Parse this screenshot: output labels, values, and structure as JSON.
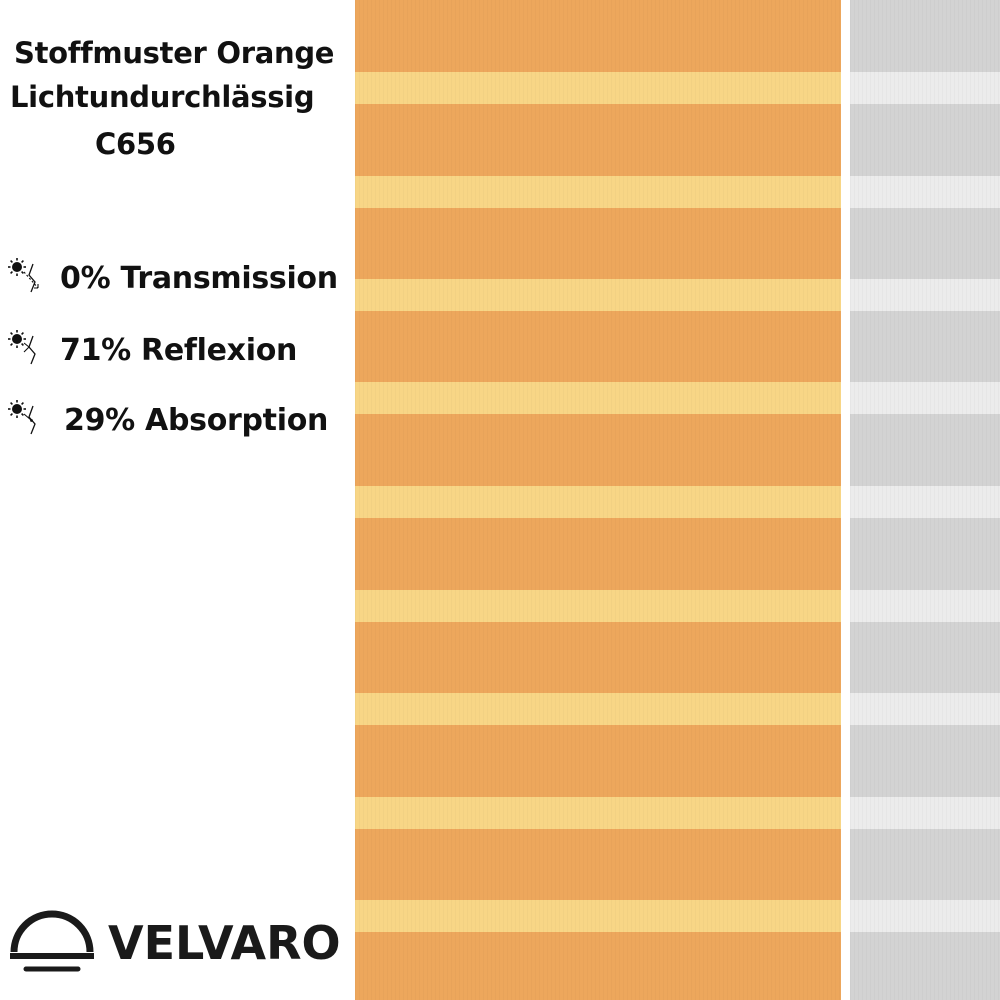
{
  "product": {
    "title_line1": "Stoffmuster Orange",
    "title_line2": "Lichtundurchlässig",
    "code": "C656"
  },
  "properties": [
    {
      "icon": "sun-transmission-icon",
      "label": "0% Transmission"
    },
    {
      "icon": "sun-reflection-icon",
      "label": "71% Reflexion"
    },
    {
      "icon": "sun-absorption-icon",
      "label": "29% Absorption"
    }
  ],
  "brand": {
    "name": "VELVARO",
    "icon": "dome-lamp-logo-icon"
  },
  "swatches": [
    {
      "name": "orange-fabric",
      "base_color": "#eda75c",
      "stripe_color": "#f8d686"
    },
    {
      "name": "gray-fabric",
      "base_color": "#d3d3d3",
      "stripe_color": "#ececec"
    }
  ]
}
